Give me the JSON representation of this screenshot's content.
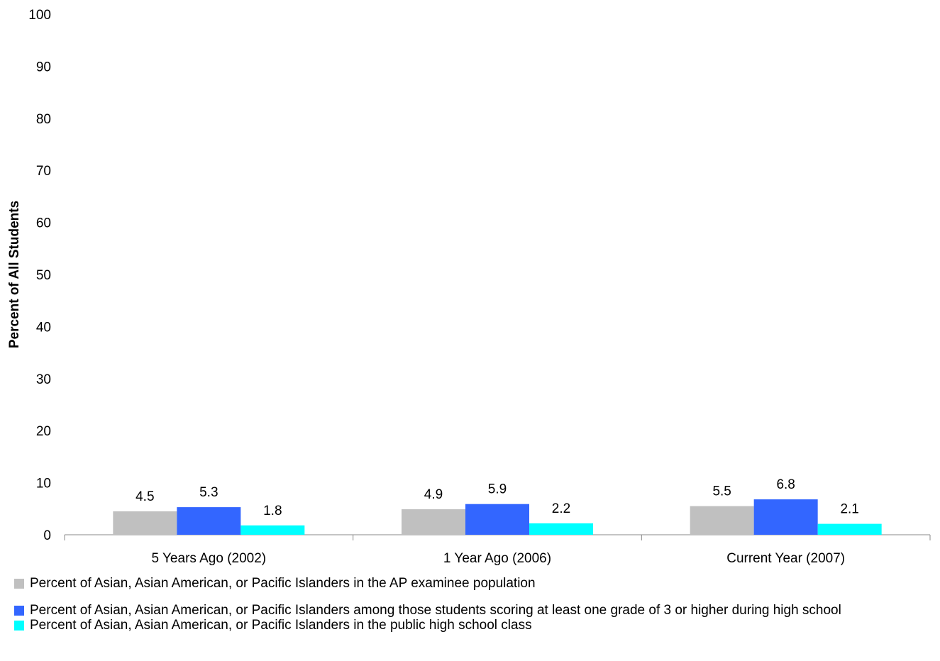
{
  "chart_data": {
    "type": "bar",
    "title": "",
    "xlabel": "",
    "ylabel": "Percent of All Students",
    "ylim": [
      0,
      100
    ],
    "yticks": [
      0,
      10,
      20,
      30,
      40,
      50,
      60,
      70,
      80,
      90,
      100
    ],
    "grid": false,
    "legend_position": "bottom",
    "categories": [
      "5 Years Ago (2002)",
      "1 Year Ago (2006)",
      "Current Year (2007)"
    ],
    "series": [
      {
        "name": "Percent of Asian, Asian American, or Pacific Islanders in the AP examinee population",
        "color": "#c0c0c0",
        "values": [
          4.5,
          4.9,
          5.5
        ]
      },
      {
        "name": "Percent of Asian, Asian American, or Pacific Islanders among those students scoring at least one grade of 3 or higher during high school",
        "color": "#3366ff",
        "values": [
          5.3,
          5.9,
          6.8
        ]
      },
      {
        "name": "Percent of Asian, Asian American, or Pacific Islanders in the public high school class",
        "color": "#00ffff",
        "values": [
          1.8,
          2.2,
          2.1
        ]
      }
    ]
  }
}
